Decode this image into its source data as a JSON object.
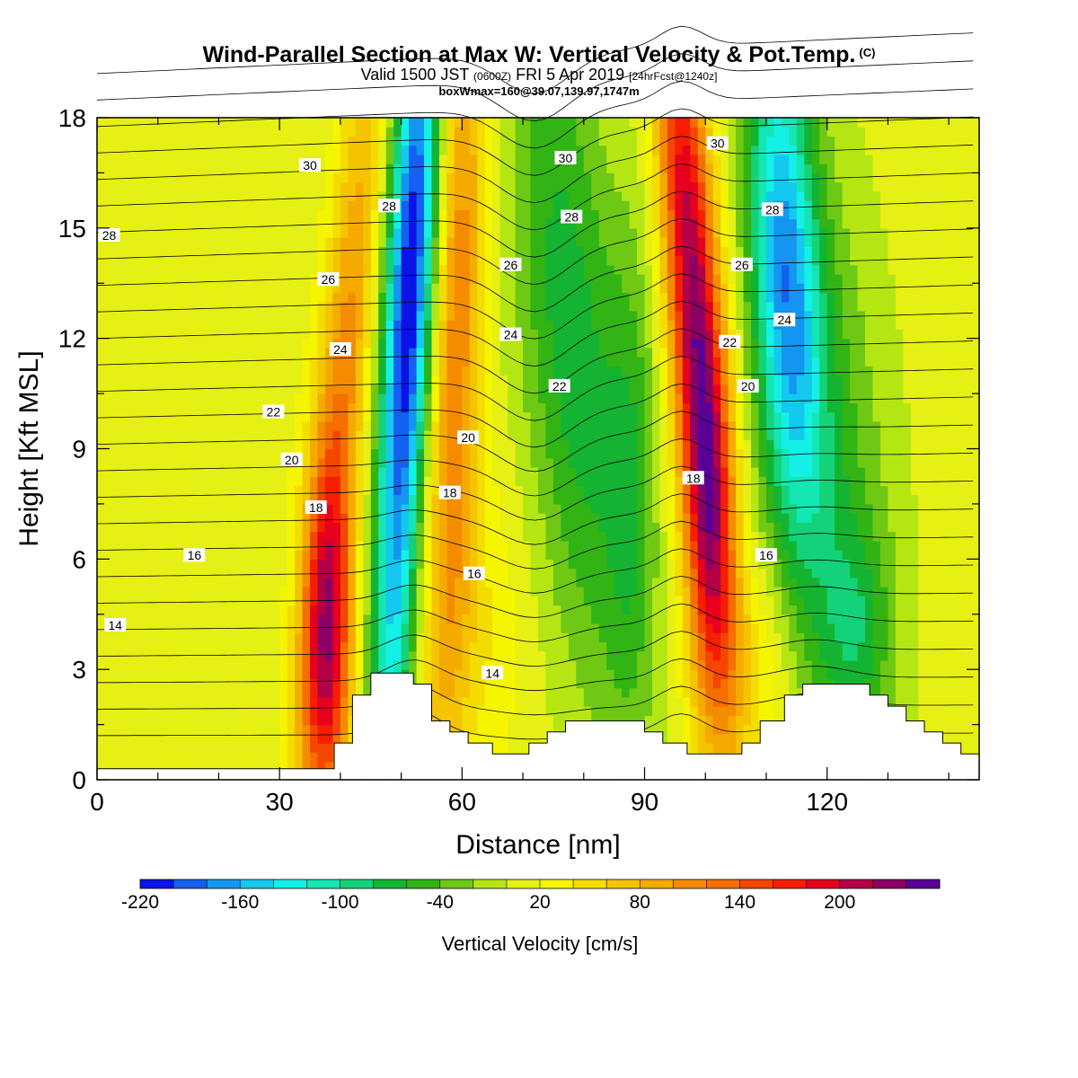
{
  "title": {
    "main": "Wind-Parallel Section at Max W: Vertical Velocity & Pot.Temp.",
    "copyright": "(C)",
    "valid_prefix": "Valid 1500 JST",
    "valid_utc": "(0600Z)",
    "valid_date": "FRI 5 Apr 2019",
    "forecast": "[24hrFcst@1240z]",
    "box": "boxWmax=160@39.07,139.97,1747m"
  },
  "chart_data": {
    "type": "heatmap",
    "xlabel": "Distance [nm]",
    "ylabel": "Height [Kft MSL]",
    "xlim": [
      0,
      145
    ],
    "ylim": [
      0,
      18
    ],
    "x_ticks": [
      0,
      30,
      60,
      90,
      120
    ],
    "y_ticks": [
      0,
      3,
      6,
      9,
      12,
      15,
      18
    ],
    "colorbar": {
      "label": "Vertical Velocity [cm/s]",
      "tick_labels": [
        -220,
        -160,
        -100,
        -40,
        20,
        80,
        140,
        200
      ],
      "colors": [
        "#0a14e6",
        "#1460f0",
        "#1496f0",
        "#14c8f0",
        "#14f0e6",
        "#14e6b4",
        "#14d278",
        "#14b432",
        "#32b414",
        "#6ec814",
        "#b4e614",
        "#e6f014",
        "#f5f500",
        "#f5dc00",
        "#f5c300",
        "#f5aa00",
        "#f58c00",
        "#f56e00",
        "#f54600",
        "#f51e00",
        "#e6001e",
        "#b40046",
        "#8c0064",
        "#5a0096"
      ]
    },
    "terrain_kft": [
      [
        0,
        0.3
      ],
      [
        31,
        0.3
      ],
      [
        39,
        0.3
      ],
      [
        39,
        1
      ],
      [
        42,
        1
      ],
      [
        42,
        2.3
      ],
      [
        45,
        2.3
      ],
      [
        45,
        2.9
      ],
      [
        52,
        2.9
      ],
      [
        52,
        2.6
      ],
      [
        55,
        2.6
      ],
      [
        55,
        1.6
      ],
      [
        58,
        1.6
      ],
      [
        58,
        1.3
      ],
      [
        61,
        1.3
      ],
      [
        61,
        1
      ],
      [
        65,
        1
      ],
      [
        65,
        0.7
      ],
      [
        71,
        0.7
      ],
      [
        71,
        1
      ],
      [
        74,
        1
      ],
      [
        74,
        1.3
      ],
      [
        77,
        1.3
      ],
      [
        77,
        1.6
      ],
      [
        90,
        1.6
      ],
      [
        90,
        1.3
      ],
      [
        93,
        1.3
      ],
      [
        93,
        1
      ],
      [
        97,
        1
      ],
      [
        97,
        0.7
      ],
      [
        106,
        0.7
      ],
      [
        106,
        1
      ],
      [
        109,
        1
      ],
      [
        109,
        1.6
      ],
      [
        113,
        1.6
      ],
      [
        113,
        2.3
      ],
      [
        116,
        2.3
      ],
      [
        116,
        2.6
      ],
      [
        127,
        2.6
      ],
      [
        127,
        2.3
      ],
      [
        130,
        2.3
      ],
      [
        130,
        2
      ],
      [
        133,
        2
      ],
      [
        133,
        1.6
      ],
      [
        136,
        1.6
      ],
      [
        136,
        1.3
      ],
      [
        139,
        1.3
      ],
      [
        139,
        1
      ],
      [
        142,
        1
      ],
      [
        142,
        0.7
      ],
      [
        145,
        0.7
      ]
    ],
    "wcells": [
      {
        "x": 38,
        "z": 3.5,
        "sx": 3,
        "sz": 3.5,
        "w": 150,
        "shear": 0.0
      },
      {
        "x": 40,
        "z": 10,
        "sx": 3,
        "sz": 8,
        "w": 100,
        "shear": 0.5
      },
      {
        "x": 50,
        "z": 9,
        "sx": 2.8,
        "sz": 10,
        "w": -160,
        "shear": 0.3
      },
      {
        "x": 52,
        "z": 15,
        "sx": 3,
        "sz": 5,
        "w": -90,
        "shear": 0.3
      },
      {
        "x": 59,
        "z": 12,
        "sx": 3,
        "sz": 9,
        "w": 110,
        "shear": 0.2
      },
      {
        "x": 63,
        "z": 4,
        "sx": 5,
        "sz": 3,
        "w": 30,
        "shear": 0
      },
      {
        "x": 78,
        "z": 12,
        "sx": 6,
        "sz": 7,
        "w": -80,
        "shear": -0.5
      },
      {
        "x": 88,
        "z": 8,
        "sx": 3,
        "sz": 5,
        "w": -50,
        "shear": 0
      },
      {
        "x": 98,
        "z": 13,
        "sx": 3,
        "sz": 7,
        "w": 210,
        "shear": -0.4
      },
      {
        "x": 101,
        "z": 7,
        "sx": 3,
        "sz": 4,
        "w": 90,
        "shear": 0
      },
      {
        "x": 113,
        "z": 14,
        "sx": 4,
        "sz": 5,
        "w": -160,
        "shear": -0.3
      },
      {
        "x": 120,
        "z": 8,
        "sx": 7,
        "sz": 6,
        "w": -60,
        "shear": -0.3
      },
      {
        "x": 125,
        "z": 4,
        "sx": 4,
        "sz": 2,
        "w": -50,
        "shear": 0
      },
      {
        "x": 108,
        "z": 3,
        "sx": 5,
        "sz": 2,
        "w": 40,
        "shear": 0
      }
    ],
    "isentropes": {
      "levels": [
        14,
        16,
        18,
        20,
        22,
        24,
        26,
        28,
        30
      ],
      "labels": [
        {
          "text": "14",
          "x": 3,
          "z": 4.2
        },
        {
          "text": "16",
          "x": 16,
          "z": 6.1
        },
        {
          "text": "18",
          "x": 36,
          "z": 7.4
        },
        {
          "text": "20",
          "x": 32,
          "z": 8.7
        },
        {
          "text": "22",
          "x": 29,
          "z": 10
        },
        {
          "text": "24",
          "x": 40,
          "z": 11.7
        },
        {
          "text": "26",
          "x": 38,
          "z": 13.6
        },
        {
          "text": "30",
          "x": 35,
          "z": 16.7
        },
        {
          "text": "28",
          "x": 2,
          "z": 14.8
        },
        {
          "text": "28",
          "x": 48,
          "z": 15.6
        },
        {
          "text": "18",
          "x": 58,
          "z": 7.8
        },
        {
          "text": "20",
          "x": 61,
          "z": 9.3
        },
        {
          "text": "26",
          "x": 68,
          "z": 14
        },
        {
          "text": "24",
          "x": 68,
          "z": 12.1
        },
        {
          "text": "16",
          "x": 62,
          "z": 5.6
        },
        {
          "text": "14",
          "x": 65,
          "z": 2.9
        },
        {
          "text": "30",
          "x": 77,
          "z": 16.9
        },
        {
          "text": "28",
          "x": 78,
          "z": 15.3
        },
        {
          "text": "22",
          "x": 76,
          "z": 10.7
        },
        {
          "text": "30",
          "x": 102,
          "z": 17.3
        },
        {
          "text": "22",
          "x": 104,
          "z": 11.9
        },
        {
          "text": "20",
          "x": 107,
          "z": 10.7
        },
        {
          "text": "18",
          "x": 98,
          "z": 8.2
        },
        {
          "text": "16",
          "x": 110,
          "z": 6.1
        },
        {
          "text": "26",
          "x": 106,
          "z": 14
        },
        {
          "text": "28",
          "x": 111,
          "z": 15.5
        },
        {
          "text": "24",
          "x": 113,
          "z": 12.5
        }
      ]
    }
  }
}
